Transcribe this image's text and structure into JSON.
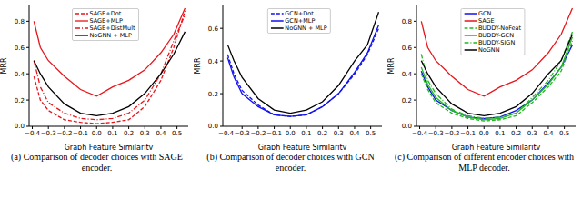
{
  "chart_data": [
    {
      "type": "line",
      "title": "(a) Comparison of decoder choices with SAGE encoder.",
      "xlabel": "Graph Feature Similarity",
      "ylabel": "MRR",
      "x": [
        -0.39,
        -0.35,
        -0.3,
        -0.2,
        -0.1,
        0.0,
        0.1,
        0.2,
        0.3,
        0.4,
        0.48,
        0.55
      ],
      "xlim": [
        -0.42,
        0.57
      ],
      "xticks": [
        {
          "value": -0.4,
          "label": "−0.4"
        },
        {
          "value": -0.3,
          "label": "−0.3"
        },
        {
          "value": -0.2,
          "label": "−0.2"
        },
        {
          "value": -0.1,
          "label": "−0.1"
        },
        {
          "value": 0,
          "label": "0.0"
        },
        0.1,
        0.2,
        0.3,
        0.4,
        0.5
      ],
      "ylim": [
        0,
        0.92
      ],
      "yticks": [
        {
          "value": 0,
          "label": "0.0"
        },
        0.2,
        0.4,
        0.6,
        0.8
      ],
      "series": [
        {
          "name": "SAGE+Dot",
          "color": "#e8151b",
          "line_style": "dashed",
          "values": [
            0.38,
            0.2,
            0.12,
            0.05,
            0.03,
            0.02,
            0.03,
            0.05,
            0.15,
            0.35,
            0.6,
            0.88
          ]
        },
        {
          "name": "SAGE+MLP",
          "color": "#e8151b",
          "line_style": "solid",
          "values": [
            0.8,
            0.6,
            0.5,
            0.38,
            0.28,
            0.23,
            0.3,
            0.35,
            0.43,
            0.56,
            0.7,
            0.9
          ]
        },
        {
          "name": "SAGE+DistMult",
          "color": "#e8151b",
          "line_style": "dashdot",
          "values": [
            0.5,
            0.3,
            0.18,
            0.1,
            0.06,
            0.05,
            0.06,
            0.1,
            0.2,
            0.4,
            0.65,
            0.85
          ]
        },
        {
          "name": "NoGNN + MLP",
          "color": "#000000",
          "line_style": "solid",
          "values": [
            0.5,
            0.4,
            0.3,
            0.17,
            0.1,
            0.08,
            0.1,
            0.15,
            0.25,
            0.4,
            0.55,
            0.72
          ]
        }
      ]
    },
    {
      "type": "line",
      "title": "(b) Comparison of decoder choices with GCN encoder.",
      "xlabel": "Graph Feature Similarity",
      "ylabel": "MRR",
      "x": [
        -0.39,
        -0.35,
        -0.3,
        -0.2,
        -0.1,
        0.0,
        0.1,
        0.2,
        0.3,
        0.4,
        0.48,
        0.55
      ],
      "xlim": [
        -0.42,
        0.57
      ],
      "xticks": [
        {
          "value": -0.4,
          "label": "−0.4"
        },
        {
          "value": -0.3,
          "label": "−0.3"
        },
        {
          "value": -0.2,
          "label": "−0.2"
        },
        {
          "value": -0.1,
          "label": "−0.1"
        },
        {
          "value": 0,
          "label": "0.0"
        },
        0.1,
        0.2,
        0.3,
        0.4,
        0.5
      ],
      "ylim": [
        0,
        0.74
      ],
      "yticks": [
        {
          "value": 0,
          "label": "0.0"
        },
        0.2,
        0.4,
        0.6
      ],
      "series": [
        {
          "name": "GCN+Dot",
          "color": "#1010f0",
          "line_style": "dashed",
          "values": [
            0.44,
            0.32,
            0.22,
            0.13,
            0.07,
            0.06,
            0.07,
            0.12,
            0.2,
            0.32,
            0.44,
            0.6
          ]
        },
        {
          "name": "GCN+MLP",
          "color": "#1010f0",
          "line_style": "solid",
          "values": [
            0.42,
            0.3,
            0.2,
            0.12,
            0.07,
            0.06,
            0.07,
            0.12,
            0.2,
            0.33,
            0.45,
            0.62
          ]
        },
        {
          "name": "NoGNN + MLP",
          "color": "#000000",
          "line_style": "solid",
          "values": [
            0.5,
            0.4,
            0.3,
            0.17,
            0.1,
            0.08,
            0.1,
            0.15,
            0.25,
            0.4,
            0.5,
            0.7
          ]
        }
      ]
    },
    {
      "type": "line",
      "title": "(c) Comparison of different encoder choices with MLP decoder.",
      "xlabel": "Graph Feature Similarity",
      "ylabel": "MRR",
      "x": [
        -0.39,
        -0.35,
        -0.3,
        -0.2,
        -0.1,
        0.0,
        0.1,
        0.2,
        0.3,
        0.4,
        0.48,
        0.55
      ],
      "xlim": [
        -0.42,
        0.57
      ],
      "xticks": [
        {
          "value": -0.4,
          "label": "−0.4"
        },
        {
          "value": -0.3,
          "label": "−0.3"
        },
        {
          "value": -0.2,
          "label": "−0.2"
        },
        {
          "value": -0.1,
          "label": "−0.1"
        },
        {
          "value": 0,
          "label": "0.0"
        },
        0.1,
        0.2,
        0.3,
        0.4,
        0.5
      ],
      "ylim": [
        0,
        0.92
      ],
      "yticks": [
        {
          "value": 0,
          "label": "0.0"
        },
        0.2,
        0.4,
        0.6,
        0.8
      ],
      "series": [
        {
          "name": "GCN",
          "color": "#1010f0",
          "line_style": "solid",
          "values": [
            0.42,
            0.3,
            0.2,
            0.12,
            0.07,
            0.06,
            0.07,
            0.12,
            0.2,
            0.33,
            0.45,
            0.62
          ]
        },
        {
          "name": "SAGE",
          "color": "#e8151b",
          "line_style": "solid",
          "values": [
            0.8,
            0.6,
            0.5,
            0.38,
            0.28,
            0.23,
            0.3,
            0.35,
            0.43,
            0.56,
            0.7,
            0.9
          ]
        },
        {
          "name": "BUDDY-NoFeat",
          "color": "#22b822",
          "line_style": "dashed",
          "values": [
            0.4,
            0.28,
            0.18,
            0.1,
            0.06,
            0.04,
            0.05,
            0.08,
            0.18,
            0.3,
            0.42,
            0.65
          ]
        },
        {
          "name": "BUDDY-GCN",
          "color": "#22b822",
          "line_style": "solid",
          "values": [
            0.45,
            0.32,
            0.22,
            0.12,
            0.07,
            0.05,
            0.06,
            0.1,
            0.2,
            0.32,
            0.45,
            0.68
          ]
        },
        {
          "name": "BUDDY-SIGN",
          "color": "#22b822",
          "line_style": "dashdot",
          "values": [
            0.55,
            0.35,
            0.25,
            0.13,
            0.08,
            0.06,
            0.07,
            0.1,
            0.22,
            0.35,
            0.5,
            0.72
          ]
        },
        {
          "name": "NoGNN",
          "color": "#000000",
          "line_style": "solid",
          "values": [
            0.5,
            0.4,
            0.3,
            0.17,
            0.1,
            0.08,
            0.1,
            0.15,
            0.25,
            0.4,
            0.5,
            0.7
          ]
        }
      ]
    }
  ]
}
